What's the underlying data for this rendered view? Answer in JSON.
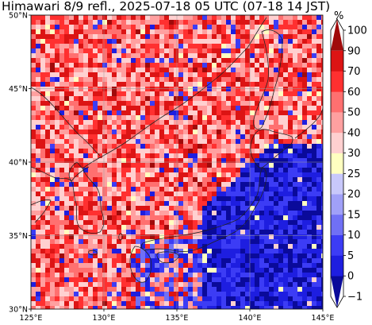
{
  "title": "Himawari 8/9 refl., 2025-07-18 05 UTC (07-18 14 JST)",
  "map": {
    "lon_range": [
      125,
      145
    ],
    "lat_range": [
      30,
      50
    ],
    "lon_ticks": [
      {
        "value": 125,
        "label": "125°E"
      },
      {
        "value": 130,
        "label": "130°E"
      },
      {
        "value": 135,
        "label": "135°E"
      },
      {
        "value": 140,
        "label": "140°E"
      },
      {
        "value": 145,
        "label": "145°E"
      }
    ],
    "lat_ticks": [
      {
        "value": 30,
        "label": "30°N"
      },
      {
        "value": 35,
        "label": "35°N"
      },
      {
        "value": 40,
        "label": "40°N"
      },
      {
        "value": 45,
        "label": "45°N"
      },
      {
        "value": 50,
        "label": "50°N"
      }
    ],
    "gridlines": true
  },
  "colorbar": {
    "unit": "%",
    "levels": [
      {
        "value": -1,
        "label": "−1"
      },
      {
        "value": 0,
        "label": "0"
      },
      {
        "value": 5,
        "label": "5"
      },
      {
        "value": 10,
        "label": "10"
      },
      {
        "value": 15,
        "label": "15"
      },
      {
        "value": 20,
        "label": "20"
      },
      {
        "value": 25,
        "label": "25"
      },
      {
        "value": 30,
        "label": "30"
      },
      {
        "value": 40,
        "label": "40"
      },
      {
        "value": 50,
        "label": "50"
      },
      {
        "value": 60,
        "label": "60"
      },
      {
        "value": 70,
        "label": "70"
      },
      {
        "value": 90,
        "label": "90"
      },
      {
        "value": 100,
        "label": "100"
      }
    ],
    "colors": [
      "#0a0a9a",
      "#1e1ee0",
      "#3c3cf5",
      "#7070f5",
      "#a0a0f8",
      "#c8c8fb",
      "#ffffc0",
      "#ffd0d0",
      "#ffa0a0",
      "#ff7070",
      "#ff3030",
      "#dc1414",
      "#a00a0a"
    ]
  }
}
